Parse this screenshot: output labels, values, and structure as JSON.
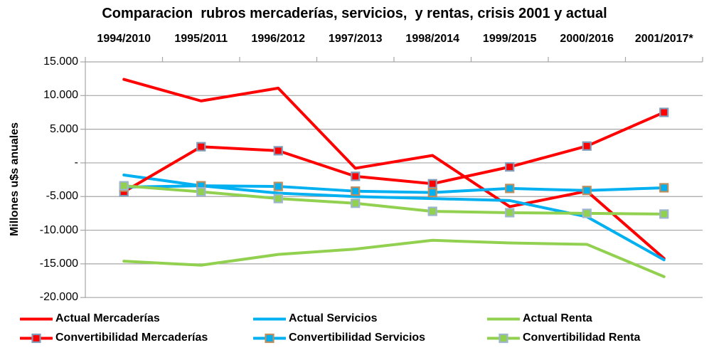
{
  "chart_data": {
    "type": "line",
    "title": "Comparacion  rubros mercaderías, servicios,  y rentas, crisis 2001 y actual",
    "ylabel": "Millones u$s anuales",
    "xlabel": "",
    "categories": [
      "1994/2010",
      "1995/2011",
      "1996/2012",
      "1997/2013",
      "1998/2014",
      "1999/2015",
      "2000/2016",
      "2001/2017*"
    ],
    "y_ticks": {
      "values": [
        15000,
        10000,
        5000,
        0,
        -5000,
        -10000,
        -15000,
        -20000
      ],
      "labels": [
        "15.000",
        "10.000",
        "5.000",
        "-",
        "-5.000",
        "-10.000",
        "-15.000",
        "-20.000"
      ]
    },
    "ylim": [
      -20000,
      15000
    ],
    "grid": "horizontal",
    "legend_position": "bottom",
    "units": "millones de u$s anuales",
    "series": [
      {
        "name": "Actual Mercaderías",
        "color": "#FF0000",
        "marker": false,
        "values": [
          12400,
          9200,
          11100,
          -800,
          1100,
          -6500,
          -4200,
          -14200
        ]
      },
      {
        "name": "Actual Servicios",
        "color": "#00B0F0",
        "marker": false,
        "values": [
          -1800,
          -3400,
          -4500,
          -5000,
          -5300,
          -5600,
          -8000,
          -14400
        ]
      },
      {
        "name": "Actual Renta",
        "color": "#92D050",
        "marker": false,
        "values": [
          -14600,
          -15200,
          -13600,
          -12800,
          -11500,
          -11900,
          -12100,
          -16900
        ]
      },
      {
        "name": "Convertibilidad Mercaderías",
        "color": "#FF0000",
        "marker": true,
        "marker_border": "#7F9DB9",
        "values": [
          -4300,
          2400,
          1800,
          -2000,
          -3100,
          -600,
          2500,
          7500
        ]
      },
      {
        "name": "Convertibilidad Servicios",
        "color": "#00B0F0",
        "marker": true,
        "marker_border": "#BE8F5C",
        "values": [
          -3600,
          -3400,
          -3500,
          -4200,
          -4400,
          -3800,
          -4100,
          -3700
        ]
      },
      {
        "name": "Convertibilidad Renta",
        "color": "#92D050",
        "marker": true,
        "marker_border": "#9DB6CE",
        "values": [
          -3400,
          -4300,
          -5300,
          -6000,
          -7200,
          -7400,
          -7500,
          -7600
        ]
      }
    ],
    "colors": {
      "grid": "#A6A6A6",
      "axis": "#A6A6A6",
      "text": "#000000",
      "background": "#FFFFFF"
    }
  }
}
